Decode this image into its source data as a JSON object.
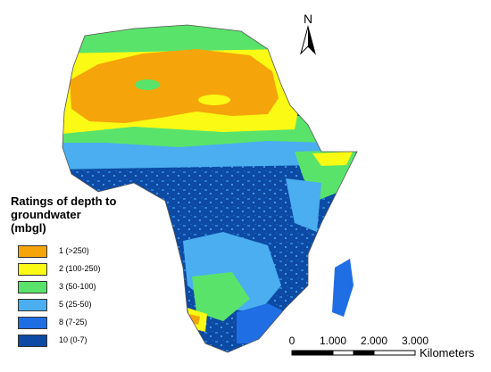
{
  "legend": {
    "title": "Ratings of depth to\ngroundwater\n (mbgl)",
    "items": [
      {
        "label": "1 (>250)",
        "color": "#f5a40a"
      },
      {
        "label": "2 (100-250)",
        "color": "#fafa14"
      },
      {
        "label": "3 (50-100)",
        "color": "#5ae36b"
      },
      {
        "label": "5 (25-50)",
        "color": "#4aaef0"
      },
      {
        "label": "8 (7-25)",
        "color": "#1f6ee3"
      },
      {
        "label": "10 (0-7)",
        "color": "#0c4aa3"
      }
    ]
  },
  "north_arrow": {
    "label": "N"
  },
  "scale_bar": {
    "labels": [
      "0",
      "1.000",
      "2.000",
      "3.000"
    ],
    "unit": "Kilometers"
  }
}
